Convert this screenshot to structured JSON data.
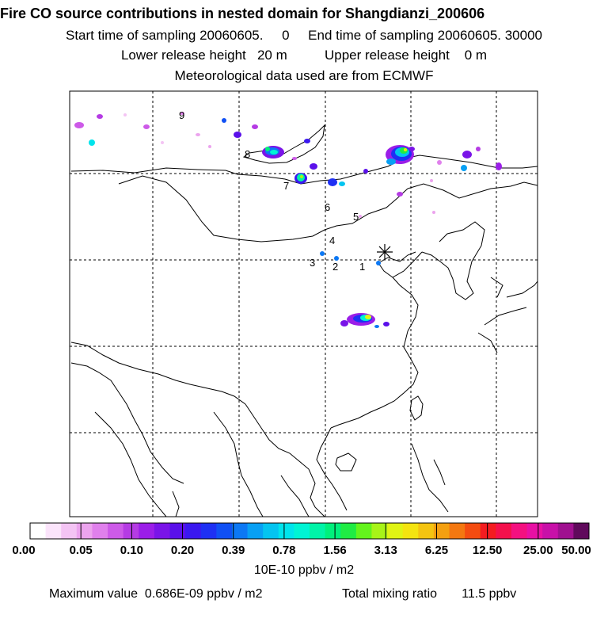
{
  "title": "Fire CO source contributions in nested domain for Shangdianzi_200606",
  "sampling": {
    "start": "Start time of sampling 20060605.     0",
    "end": "End time of sampling 20060605. 30000"
  },
  "release": {
    "lower": "Lower release height   20 m",
    "upper": "Upper release height    0 m"
  },
  "met_data": "Meteorological data used are from ECMWF",
  "trajectory_labels": [
    "1",
    "2",
    "3",
    "4",
    "5",
    "6",
    "7",
    "8",
    "9"
  ],
  "colorbar": {
    "labels": [
      "0.00",
      "0.05",
      "0.10",
      "0.20",
      "0.39",
      "0.78",
      "1.56",
      "3.13",
      "6.25",
      "12.50",
      "25.00",
      "50.00"
    ],
    "colors": [
      "#ffffff",
      "#fbe4fb",
      "#f4c4f4",
      "#eca4ee",
      "#e080ec",
      "#cd5ae8",
      "#b53be4",
      "#9b1ee8",
      "#7a14e8",
      "#5a10ea",
      "#3a18f0",
      "#1e30f4",
      "#1050f4",
      "#0c78f4",
      "#08a0f4",
      "#04c4f0",
      "#00e4ec",
      "#00f4d4",
      "#00f4a8",
      "#00f07c",
      "#20ec44",
      "#64f41c",
      "#a8f418",
      "#e0f414",
      "#f4e410",
      "#f4c410",
      "#f4a010",
      "#f47810",
      "#f44c10",
      "#f41c20",
      "#f4104c",
      "#f41080",
      "#e810a4",
      "#c810a8",
      "#a01090",
      "#600a5c"
    ],
    "units": "10E-10 ppbv / m2"
  },
  "footer": {
    "maximum": "Maximum value  0.686E-09 ppbv / m2",
    "total": "Total mixing ratio       11.5 ppbv"
  }
}
